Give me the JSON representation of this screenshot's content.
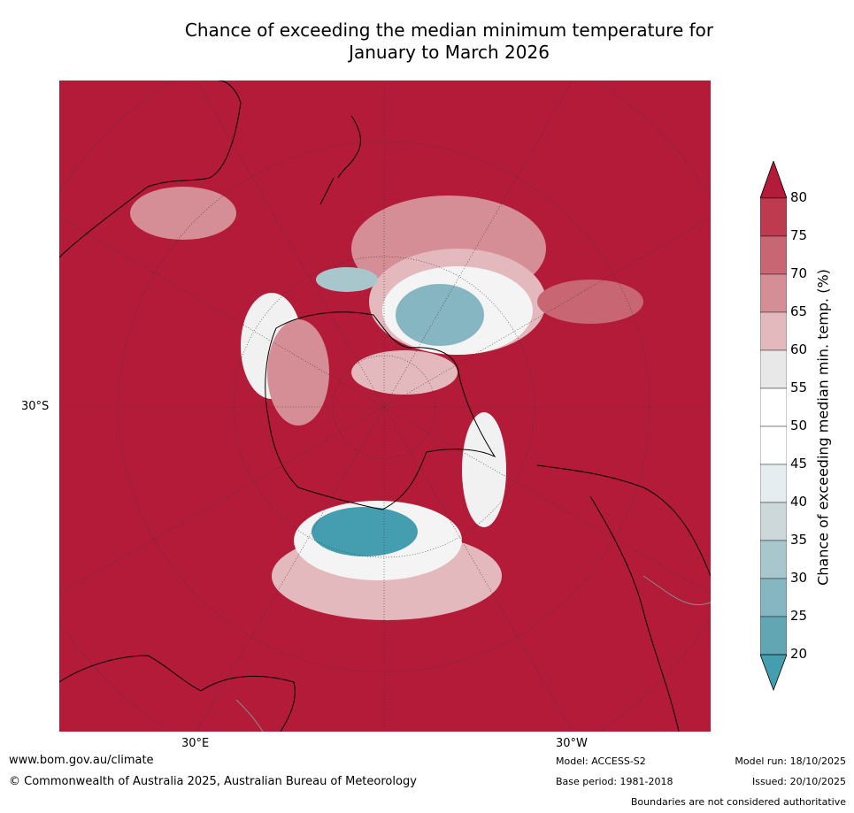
{
  "title": {
    "line1": "Chance of exceeding the median minimum temperature for",
    "line2": "January to March 2026"
  },
  "map": {
    "lat_label": "30°S",
    "lon_labels": [
      "30°E",
      "30°W"
    ],
    "colors": {
      "background": "#b31b38",
      "land_line": "#000000",
      "border_line": "#8a8a8a",
      "grid_line": "#3a3a3a"
    }
  },
  "colorbar": {
    "label": "Chance of exceeding median min. temp. (%)",
    "ticks": [
      "80",
      "75",
      "70",
      "65",
      "60",
      "55",
      "50",
      "45",
      "40",
      "35",
      "30",
      "25",
      "20"
    ],
    "bands": [
      {
        "range": "80+",
        "color": "#b31b38"
      },
      {
        "range": "75-80",
        "color": "#be3a4f"
      },
      {
        "range": "70-75",
        "color": "#c86673"
      },
      {
        "range": "65-70",
        "color": "#d58e96"
      },
      {
        "range": "60-65",
        "color": "#e4b9bd"
      },
      {
        "range": "55-60",
        "color": "#e8e8e8"
      },
      {
        "range": "50-55",
        "color": "#ffffff"
      },
      {
        "range": "45-50",
        "color": "#ffffff"
      },
      {
        "range": "40-45",
        "color": "#e6edf0"
      },
      {
        "range": "35-40",
        "color": "#cdd8db"
      },
      {
        "range": "30-35",
        "color": "#a8c7cd"
      },
      {
        "range": "25-30",
        "color": "#86b6c1"
      },
      {
        "range": "20-25",
        "color": "#62a6b3"
      },
      {
        "range": "<20",
        "color": "#449eaf"
      }
    ]
  },
  "footer": {
    "website": "www.bom.gov.au/climate",
    "copyright": "© Commonwealth of Australia 2025, Australian Bureau of Meteorology",
    "model": "Model: ACCESS-S2",
    "base_period": "Base period: 1981-2018",
    "model_run": "Model run: 18/10/2025",
    "issued": "Issued: 20/10/2025",
    "disclaimer": "Boundaries are not considered authoritative"
  }
}
